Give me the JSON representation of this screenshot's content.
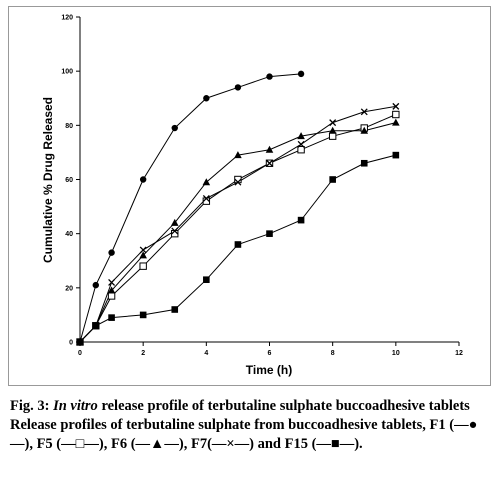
{
  "chart_data": {
    "type": "line",
    "title": "",
    "xlabel": "Time (h)",
    "ylabel": "Cumulative % Drug Released",
    "xlim": [
      0,
      12
    ],
    "ylim": [
      0,
      120
    ],
    "xticks": [
      "0",
      "2",
      "4",
      "6",
      "8",
      "10",
      "12"
    ],
    "yticks": [
      "0",
      "20",
      "40",
      "60",
      "80",
      "100",
      "120"
    ],
    "grid": false,
    "legend": "none",
    "series": [
      {
        "marker": "filled-circle",
        "x": [
          0,
          0.5,
          1,
          2,
          3,
          4,
          5,
          6,
          7
        ],
        "y": [
          0,
          21,
          33,
          60,
          79,
          90,
          94,
          98,
          99
        ]
      },
      {
        "marker": "open-square",
        "x": [
          0,
          0.5,
          1,
          2,
          3,
          4,
          5,
          6,
          7,
          8,
          9,
          10
        ],
        "y": [
          0,
          6,
          17,
          28,
          40,
          52,
          60,
          66,
          71,
          76,
          79,
          84
        ]
      },
      {
        "marker": "filled-triangle",
        "x": [
          0,
          0.5,
          1,
          2,
          3,
          4,
          5,
          6,
          7,
          8,
          9,
          10
        ],
        "y": [
          0,
          6,
          19,
          32,
          44,
          59,
          69,
          71,
          76,
          78,
          78,
          81
        ]
      },
      {
        "marker": "cross",
        "x": [
          0,
          0.5,
          1,
          2,
          3,
          4,
          5,
          6,
          7,
          8,
          9,
          10
        ],
        "y": [
          0,
          6,
          22,
          34,
          41,
          53,
          59,
          66,
          73,
          81,
          85,
          87
        ]
      },
      {
        "marker": "filled-square",
        "x": [
          0,
          0.5,
          1,
          2,
          3,
          4,
          5,
          6,
          7,
          8,
          9,
          10
        ],
        "y": [
          0,
          6,
          9,
          10,
          12,
          23,
          36,
          40,
          45,
          60,
          66,
          69
        ]
      }
    ]
  },
  "caption": {
    "fig_label": "Fig. 3: ",
    "fig_title_italic": "In vitro",
    "fig_title_rest": " release profile of terbutaline sulphate buccoadhesive tablets",
    "description": "Release profiles of terbutaline sulphate from buccoadhesive tablets, F1 (—●—), F5 (—□—), F6 (—▲—), F7(—×—) and F15 (—■—)."
  }
}
